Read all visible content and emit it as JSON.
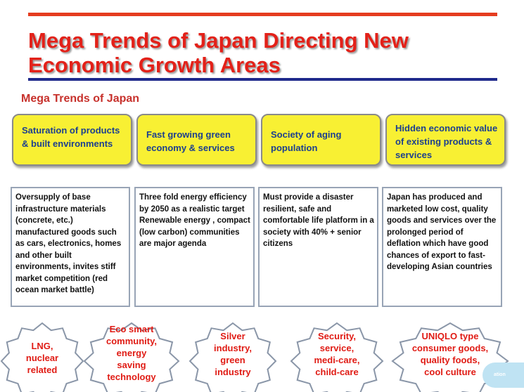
{
  "title": {
    "line1": "Mega Trends of Japan Directing New",
    "line2": "Economic Growth Areas"
  },
  "subtitle": "Mega Trends of  Japan",
  "trends": [
    {
      "label": "Saturation of products  &  built environments"
    },
    {
      "label": "Fast growing  green economy & services"
    },
    {
      "label": "Society of aging population"
    },
    {
      "label": "Hidden economic value of existing products  & services"
    }
  ],
  "details": [
    {
      "text": "Oversupply of base infrastructure materials (concrete, etc.) manufactured goods such as cars, electronics, homes and other built environments, invites stiff market competition (red ocean market battle)"
    },
    {
      "text": "Three fold energy efficiency by 2050 as a realistic target Renewable energy , compact (low  carbon) communities are major agenda"
    },
    {
      "text": "Must provide a disaster resilient, safe and comfortable life platform in a society with  40% + senior citizens"
    },
    {
      "text": "Japan has produced and marketed  low cost, quality goods and services  over the prolonged period of deflation which have good chances of export to fast-developing Asian countries"
    }
  ],
  "growth_areas": [
    {
      "lines": [
        "LNG,",
        "nuclear",
        "related"
      ]
    },
    {
      "lines": [
        "Eco smart",
        "community,",
        "energy",
        "saving",
        "technology"
      ]
    },
    {
      "lines": [
        "Silver",
        "industry,",
        "green",
        "industry"
      ]
    },
    {
      "lines": [
        "Security,",
        "service,",
        "medi-care,",
        "child-care"
      ]
    },
    {
      "lines": [
        "UNIQLO type",
        "consumer goods,",
        "quality  foods,",
        "cool culture"
      ]
    }
  ],
  "logo": {
    "text": "ation"
  },
  "colors": {
    "title_red": "#e32119",
    "top_bar": "#e53c1f",
    "bottom_bar": "#1f2a8c",
    "trend_fill": "#f8f033",
    "trend_text": "#1c3f8f",
    "burst_text": "#e01b14",
    "logo_fill": "#bfe3f3"
  }
}
